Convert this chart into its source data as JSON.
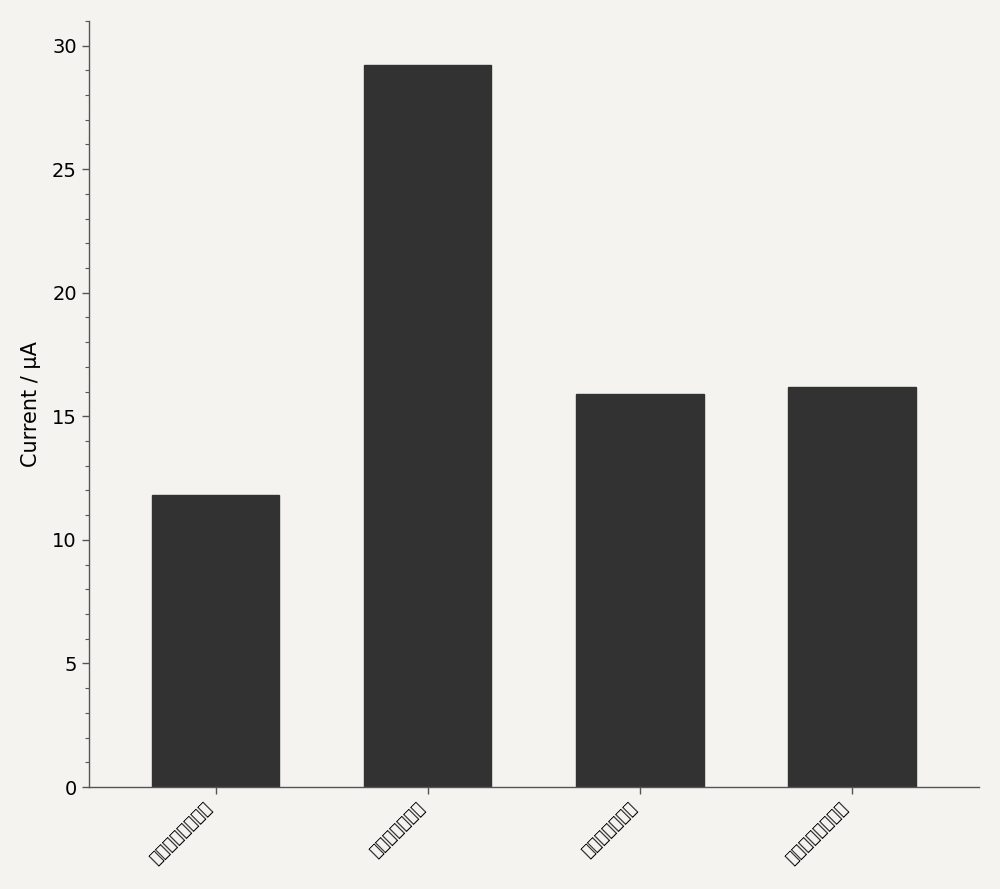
{
  "categories": [
    "酸石酸盐缓冲溶液",
    "磷酸盐缓冲溶液",
    "醒酸盐缓冲溶液",
    "柠檬酸盐缓冲溶液"
  ],
  "values": [
    11.8,
    29.2,
    15.9,
    16.2
  ],
  "bar_color": "#323232",
  "ylabel": "Current / μA",
  "ylim": [
    0,
    31
  ],
  "yticks": [
    0,
    5,
    10,
    15,
    20,
    25,
    30
  ],
  "background_color": "#f5f3ef",
  "ylabel_fontsize": 15,
  "tick_fontsize": 14,
  "bar_width": 0.6,
  "figsize": [
    10.0,
    8.89
  ]
}
